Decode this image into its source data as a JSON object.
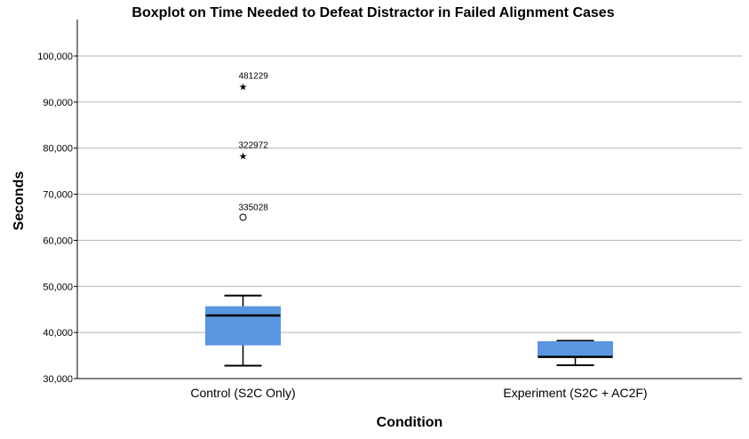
{
  "chart_data": {
    "type": "boxplot",
    "title": "Boxplot on Time Needed to Defeat Distractor in Failed Alignment Cases",
    "xlabel": "Condition",
    "ylabel": "Seconds",
    "ylim": [
      30000,
      108000
    ],
    "yticks": [
      30000,
      40000,
      50000,
      60000,
      70000,
      80000,
      90000,
      100000
    ],
    "ytick_labels": [
      "30,000",
      "40,000",
      "50,000",
      "60,000",
      "70,000",
      "80,000",
      "90,000",
      "100,000"
    ],
    "grid": true,
    "box_color": "#5b96e0",
    "categories": [
      "Control (S2C Only)",
      "Experiment (S2C + AC2F)"
    ],
    "boxes": [
      {
        "category": "Control (S2C Only)",
        "whisker_low": 32800,
        "q1": 37300,
        "median": 43700,
        "q3": 45600,
        "whisker_high": 48000,
        "outliers": [
          {
            "value": 65000,
            "marker": "circle",
            "label": "335028"
          },
          {
            "value": 78500,
            "marker": "star",
            "label": "322972"
          },
          {
            "value": 93500,
            "marker": "star",
            "label": "481229"
          }
        ]
      },
      {
        "category": "Experiment (S2C + AC2F)",
        "whisker_low": 32900,
        "q1": 34700,
        "median": 34700,
        "q3": 38000,
        "whisker_high": 38200,
        "outliers": []
      }
    ]
  }
}
